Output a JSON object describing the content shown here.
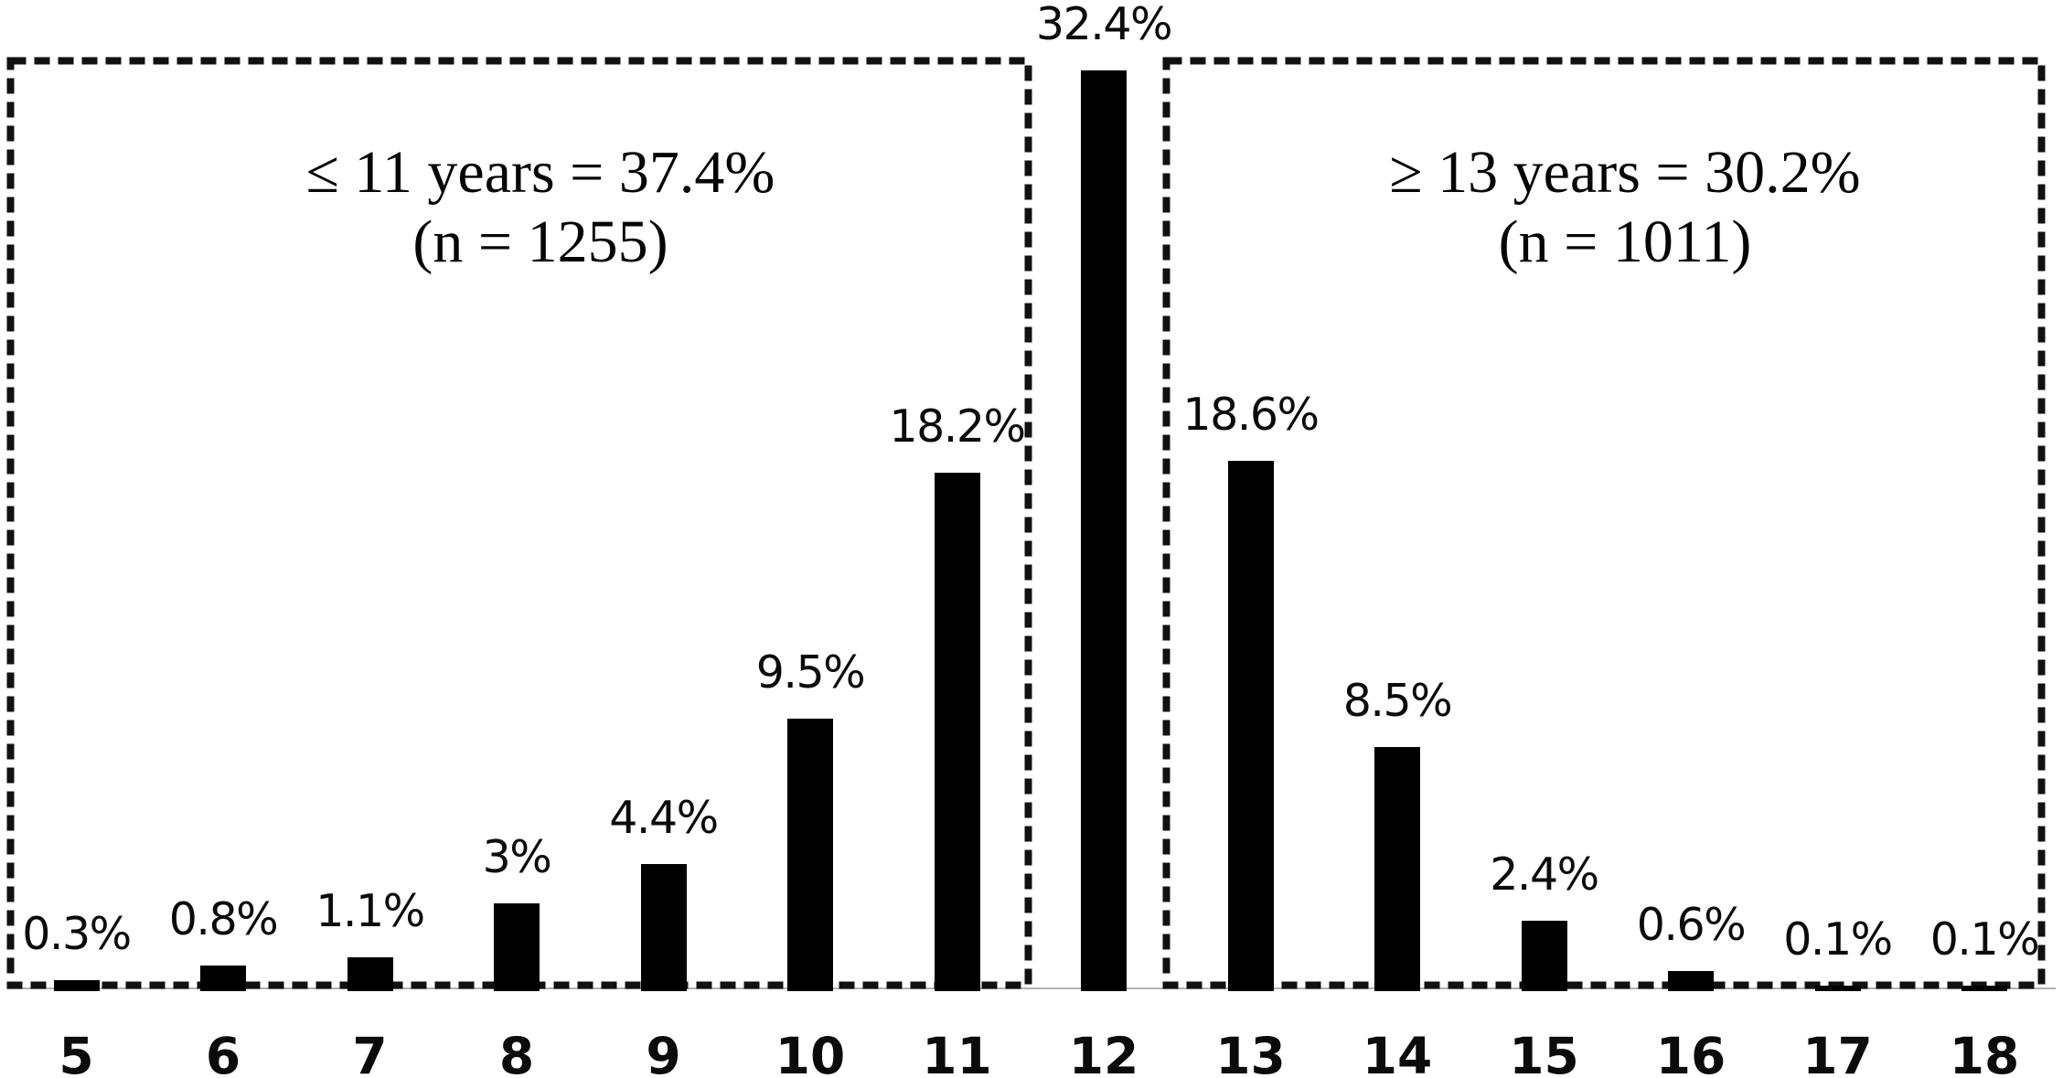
{
  "chart_data": {
    "type": "bar",
    "title": "",
    "xlabel": "",
    "ylabel": "",
    "categories": [
      "5",
      "6",
      "7",
      "8",
      "9",
      "10",
      "11",
      "12",
      "13",
      "14",
      "15",
      "16",
      "17",
      "18"
    ],
    "values": [
      0.3,
      0.8,
      1.1,
      3,
      4.4,
      9.5,
      18.2,
      32.4,
      18.6,
      8.5,
      2.4,
      0.6,
      0.1,
      0.1
    ],
    "value_labels": [
      "0.3%",
      "0.8%",
      "1.1%",
      "3%",
      "4.4%",
      "9.5%",
      "18.2%",
      "32.4%",
      "18.6%",
      "8.5%",
      "2.4%",
      "0.6%",
      "0.1%",
      "0.1%"
    ],
    "ylim": [
      0,
      34
    ],
    "grid": false,
    "legend": "none",
    "bar_color": "#000000",
    "axis_line_color": "#b3b3b3",
    "box_border_color": "#111111",
    "annotations": {
      "left_box": {
        "line1": "≤ 11 years = 37.4%",
        "line2": "(n = 1255)"
      },
      "right_box": {
        "line1": "≥ 13 years = 30.2%",
        "line2": "(n = 1011)"
      }
    }
  }
}
